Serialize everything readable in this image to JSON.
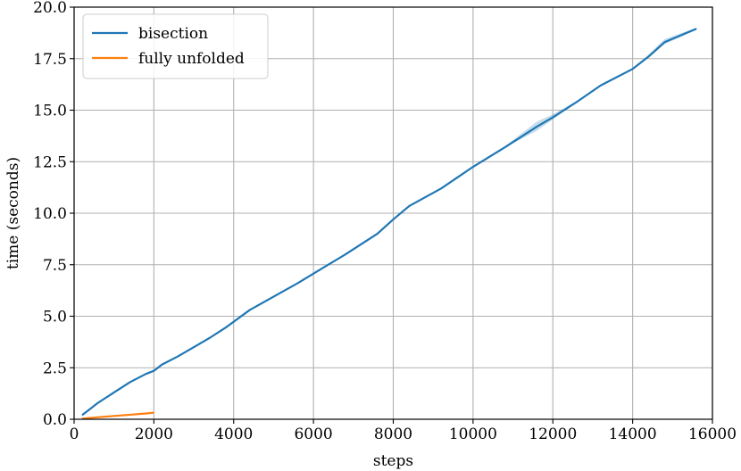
{
  "chart_data": {
    "type": "line",
    "title": "",
    "xlabel": "steps",
    "ylabel": "time (seconds)",
    "xlim": [
      0,
      16000
    ],
    "ylim": [
      0,
      20
    ],
    "x_ticks": [
      0,
      2000,
      4000,
      6000,
      8000,
      10000,
      12000,
      14000,
      16000
    ],
    "x_tick_labels": [
      "0",
      "2000",
      "4000",
      "6000",
      "8000",
      "10000",
      "12000",
      "14000",
      "16000"
    ],
    "y_ticks": [
      0,
      2.5,
      5,
      7.5,
      10,
      12.5,
      15,
      17.5,
      20
    ],
    "y_tick_labels": [
      "0.0",
      "2.5",
      "5.0",
      "7.5",
      "10.0",
      "12.5",
      "15.0",
      "17.5",
      "20.0"
    ],
    "grid": true,
    "legend_position": "top-left",
    "series": [
      {
        "name": "bisection",
        "color": "#1f77b4",
        "x": [
          200,
          400,
          600,
          800,
          1000,
          1200,
          1400,
          1600,
          1800,
          2000,
          2200,
          2600,
          3000,
          3400,
          3800,
          4400,
          5000,
          5600,
          6200,
          6800,
          7600,
          8000,
          8400,
          9200,
          10000,
          10800,
          11200,
          11600,
          12000,
          12600,
          13200,
          14000,
          14400,
          14800,
          15600
        ],
        "y": [
          0.2,
          0.5,
          0.8,
          1.05,
          1.3,
          1.55,
          1.8,
          2.0,
          2.2,
          2.35,
          2.65,
          3.05,
          3.5,
          3.95,
          4.45,
          5.3,
          5.95,
          6.6,
          7.3,
          8.0,
          9.0,
          9.7,
          10.35,
          11.2,
          12.25,
          13.2,
          13.7,
          14.2,
          14.65,
          15.4,
          16.2,
          17.0,
          17.6,
          18.3,
          18.95
        ],
        "band_lower": [
          0.2,
          0.5,
          0.8,
          1.05,
          1.3,
          1.55,
          1.8,
          2.0,
          2.2,
          2.35,
          2.65,
          3.05,
          3.5,
          3.95,
          4.45,
          5.3,
          5.95,
          6.6,
          7.3,
          8.0,
          9.0,
          9.7,
          10.35,
          11.2,
          12.25,
          13.2,
          13.6,
          14.0,
          14.55,
          15.4,
          16.2,
          17.0,
          17.55,
          18.2,
          18.9
        ],
        "band_upper": [
          0.2,
          0.5,
          0.8,
          1.05,
          1.3,
          1.55,
          1.8,
          2.0,
          2.2,
          2.35,
          2.65,
          3.05,
          3.5,
          3.95,
          4.45,
          5.3,
          5.95,
          6.6,
          7.3,
          8.0,
          9.0,
          9.7,
          10.35,
          11.2,
          12.25,
          13.25,
          13.85,
          14.45,
          14.8,
          15.45,
          16.2,
          17.05,
          17.7,
          18.45,
          19.0
        ]
      },
      {
        "name": "fully unfolded",
        "color": "#ff7f0e",
        "x": [
          200,
          600,
          1000,
          1400,
          1800,
          2000
        ],
        "y": [
          0.03,
          0.1,
          0.16,
          0.22,
          0.28,
          0.32
        ]
      }
    ]
  }
}
